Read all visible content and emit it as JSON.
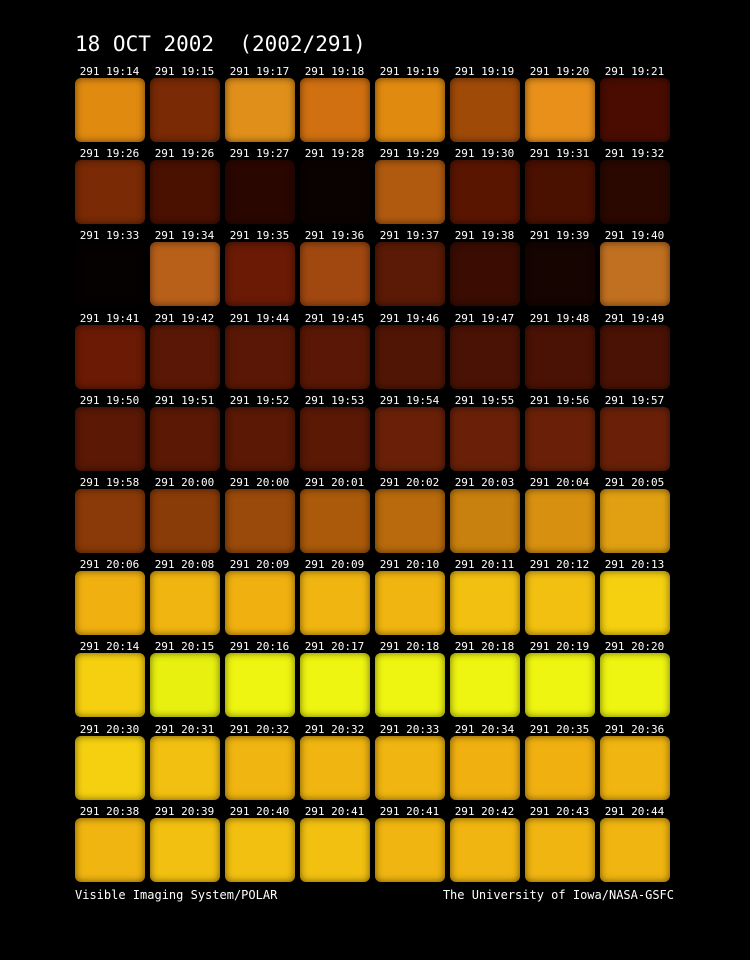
{
  "header": {
    "title": "18 OCT 2002  (2002/291)"
  },
  "footer": {
    "left": "Visible Imaging System/POLAR",
    "right": "The University of Iowa/NASA-GSFC"
  },
  "rows": [
    [
      {
        "label": "291 19:14",
        "color": "#e08a10"
      },
      {
        "label": "291 19:15",
        "color": "#7a2a05"
      },
      {
        "label": "291 19:17",
        "color": "#e0901a"
      },
      {
        "label": "291 19:18",
        "color": "#d07010"
      },
      {
        "label": "291 19:19",
        "color": "#e08a10"
      },
      {
        "label": "291 19:19",
        "color": "#a04a08"
      },
      {
        "label": "291 19:20",
        "color": "#e8901a"
      },
      {
        "label": "291 19:21",
        "color": "#4a0c00"
      }
    ],
    [
      {
        "label": "291 19:26",
        "color": "#7a2a05"
      },
      {
        "label": "291 19:26",
        "color": "#4a1000"
      },
      {
        "label": "291 19:27",
        "color": "#2a0600"
      },
      {
        "label": "291 19:28",
        "color": "#0a0200"
      },
      {
        "label": "291 19:29",
        "color": "#b05a10"
      },
      {
        "label": "291 19:30",
        "color": "#5a1500"
      },
      {
        "label": "291 19:31",
        "color": "#4a1000"
      },
      {
        "label": "291 19:32",
        "color": "#2a0800"
      }
    ],
    [
      {
        "label": "291 19:33",
        "color": "#050100"
      },
      {
        "label": "291 19:34",
        "color": "#b8601a"
      },
      {
        "label": "291 19:35",
        "color": "#6a1a05"
      },
      {
        "label": "291 19:36",
        "color": "#a04810"
      },
      {
        "label": "291 19:37",
        "color": "#5a1a05"
      },
      {
        "label": "291 19:38",
        "color": "#3a0c02"
      },
      {
        "label": "291 19:39",
        "color": "#150400"
      },
      {
        "label": "291 19:40",
        "color": "#c07020"
      }
    ],
    [
      {
        "label": "291 19:41",
        "color": "#6a1a05"
      },
      {
        "label": "291 19:42",
        "color": "#5a1705"
      },
      {
        "label": "291 19:44",
        "color": "#5a1705"
      },
      {
        "label": "291 19:45",
        "color": "#5a1705"
      },
      {
        "label": "291 19:46",
        "color": "#501505"
      },
      {
        "label": "291 19:47",
        "color": "#4a1205"
      },
      {
        "label": "291 19:48",
        "color": "#4a1205"
      },
      {
        "label": "291 19:49",
        "color": "#4a1205"
      }
    ],
    [
      {
        "label": "291 19:50",
        "color": "#5a1805"
      },
      {
        "label": "291 19:51",
        "color": "#5a1805"
      },
      {
        "label": "291 19:52",
        "color": "#5a1805"
      },
      {
        "label": "291 19:53",
        "color": "#5a1805"
      },
      {
        "label": "291 19:54",
        "color": "#6a2008"
      },
      {
        "label": "291 19:55",
        "color": "#6a2008"
      },
      {
        "label": "291 19:56",
        "color": "#6a2008"
      },
      {
        "label": "291 19:57",
        "color": "#6a2008"
      }
    ],
    [
      {
        "label": "291 19:58",
        "color": "#8a3a08"
      },
      {
        "label": "291 20:00",
        "color": "#8a3c08"
      },
      {
        "label": "291 20:00",
        "color": "#9a4a0a"
      },
      {
        "label": "291 20:01",
        "color": "#aa5a0a"
      },
      {
        "label": "291 20:02",
        "color": "#b86a0c"
      },
      {
        "label": "291 20:03",
        "color": "#c8800e"
      },
      {
        "label": "291 20:04",
        "color": "#d89010"
      },
      {
        "label": "291 20:05",
        "color": "#e0a012"
      }
    ],
    [
      {
        "label": "291 20:06",
        "color": "#f0b010"
      },
      {
        "label": "291 20:08",
        "color": "#f0b510"
      },
      {
        "label": "291 20:09",
        "color": "#f0b010"
      },
      {
        "label": "291 20:09",
        "color": "#f0b510"
      },
      {
        "label": "291 20:10",
        "color": "#f0b510"
      },
      {
        "label": "291 20:11",
        "color": "#f2c010"
      },
      {
        "label": "291 20:12",
        "color": "#f2c010"
      },
      {
        "label": "291 20:13",
        "color": "#f5d010"
      }
    ],
    [
      {
        "label": "291 20:14",
        "color": "#f5d010"
      },
      {
        "label": "291 20:15",
        "color": "#e8f010"
      },
      {
        "label": "291 20:16",
        "color": "#eef511"
      },
      {
        "label": "291 20:17",
        "color": "#eef511"
      },
      {
        "label": "291 20:18",
        "color": "#eef511"
      },
      {
        "label": "291 20:18",
        "color": "#eef511"
      },
      {
        "label": "291 20:19",
        "color": "#eef511"
      },
      {
        "label": "291 20:20",
        "color": "#eef511"
      }
    ],
    [
      {
        "label": "291 20:30",
        "color": "#f5d010"
      },
      {
        "label": "291 20:31",
        "color": "#f2c010"
      },
      {
        "label": "291 20:32",
        "color": "#f0b510"
      },
      {
        "label": "291 20:32",
        "color": "#f0b510"
      },
      {
        "label": "291 20:33",
        "color": "#f0b510"
      },
      {
        "label": "291 20:34",
        "color": "#f0b010"
      },
      {
        "label": "291 20:35",
        "color": "#f0b010"
      },
      {
        "label": "291 20:36",
        "color": "#f0b510"
      }
    ],
    [
      {
        "label": "291 20:38",
        "color": "#f0b510"
      },
      {
        "label": "291 20:39",
        "color": "#f2c010"
      },
      {
        "label": "291 20:40",
        "color": "#f2c010"
      },
      {
        "label": "291 20:41",
        "color": "#f2c010"
      },
      {
        "label": "291 20:41",
        "color": "#f0b510"
      },
      {
        "label": "291 20:42",
        "color": "#f0b510"
      },
      {
        "label": "291 20:43",
        "color": "#f0b510"
      },
      {
        "label": "291 20:44",
        "color": "#f0b510"
      }
    ]
  ]
}
